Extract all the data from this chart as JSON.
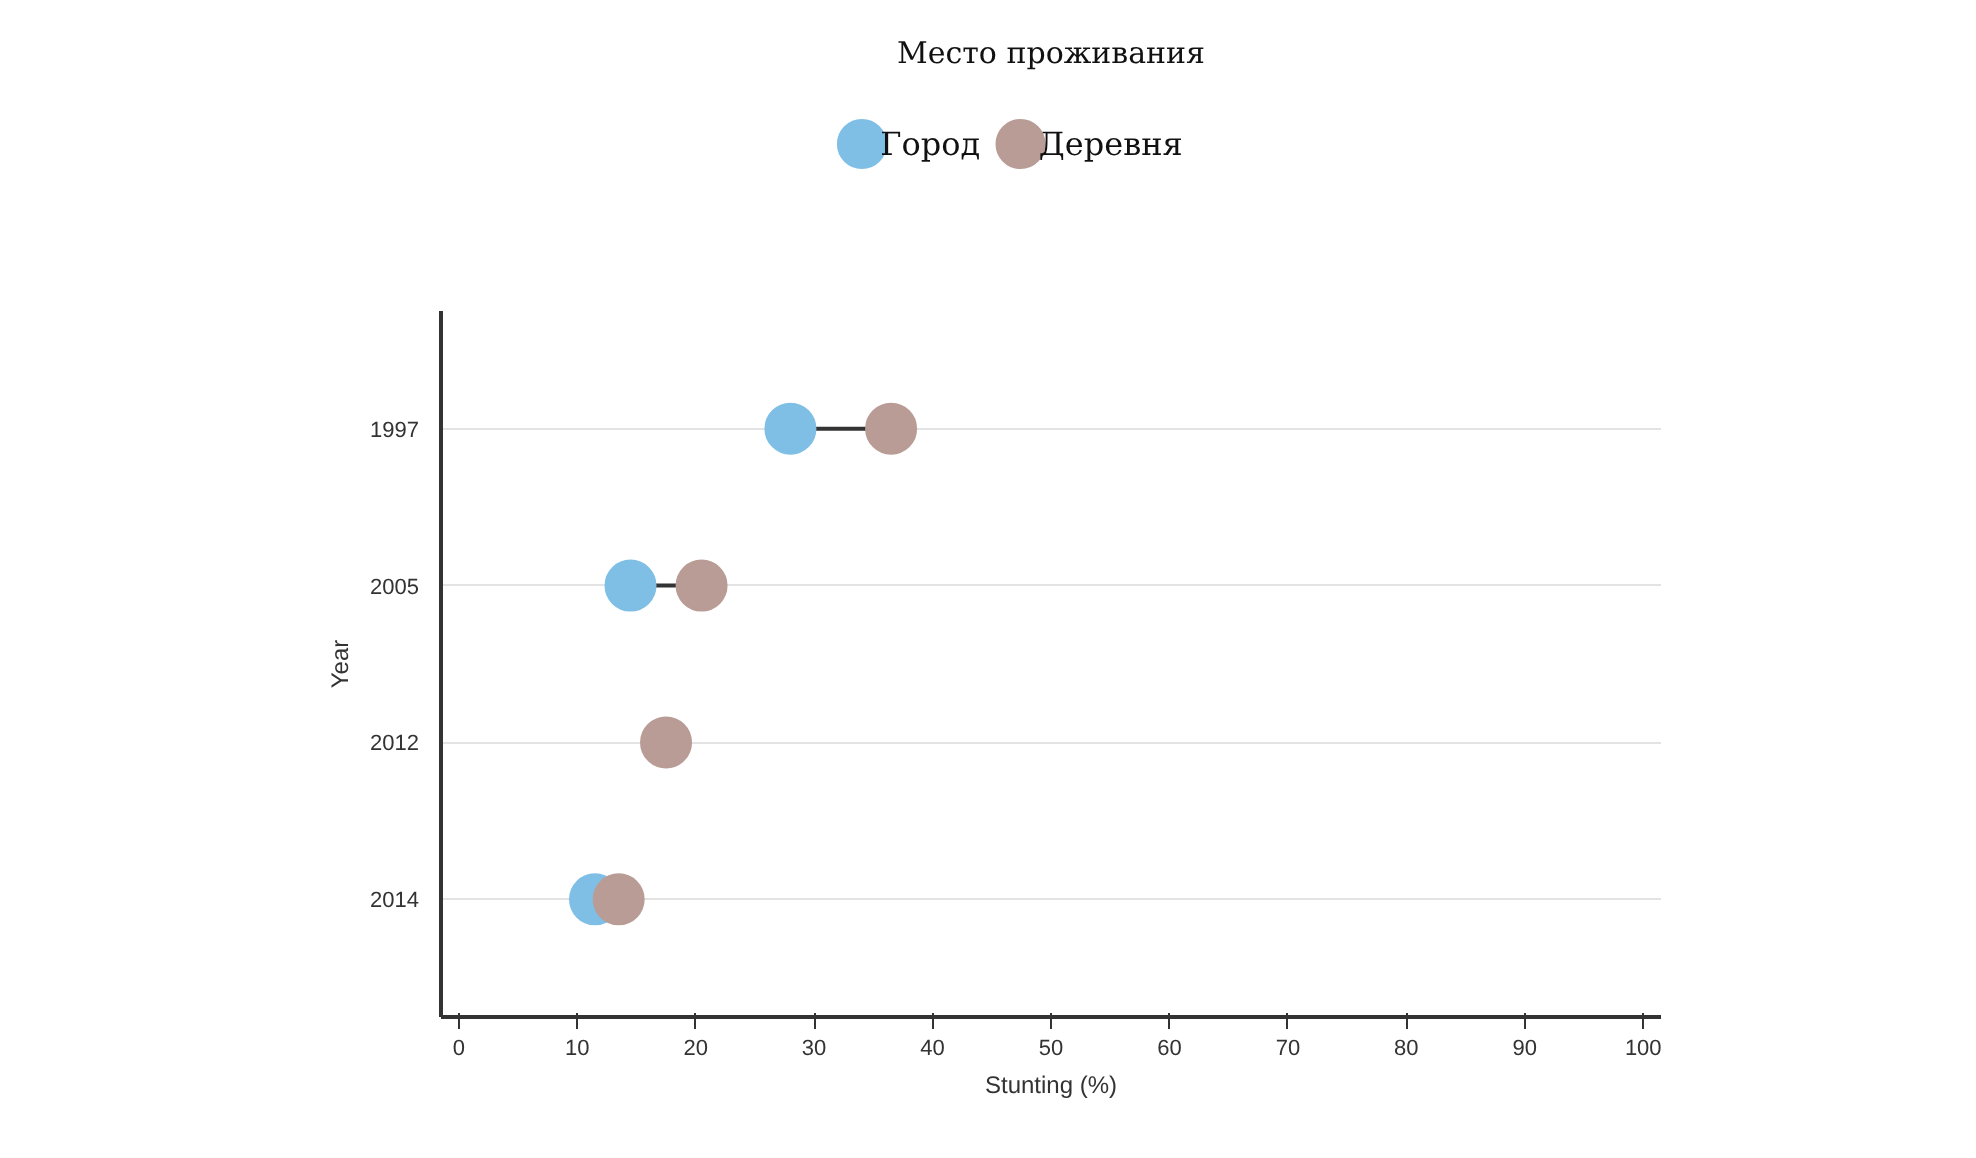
{
  "chart_data": {
    "type": "scatter",
    "orientation": "horizontal",
    "legend_title": "Место проживания",
    "xlabel": "Stunting (%)",
    "ylabel": "Year",
    "categories": [
      "1997",
      "2005",
      "2012",
      "2014"
    ],
    "series": [
      {
        "name": "Город",
        "color": "#7fbfe6",
        "values": [
          28,
          14.5,
          null,
          11.5
        ]
      },
      {
        "name": "Деревня",
        "color": "#b99c95",
        "values": [
          36.5,
          20.5,
          17.5,
          13.5
        ]
      }
    ],
    "xlim": [
      -1.5,
      101.5
    ],
    "xticks": [
      0,
      10,
      20,
      30,
      40,
      50,
      60,
      70,
      80,
      90,
      100
    ],
    "grid": "y",
    "legend": "top",
    "marker": "circle"
  }
}
